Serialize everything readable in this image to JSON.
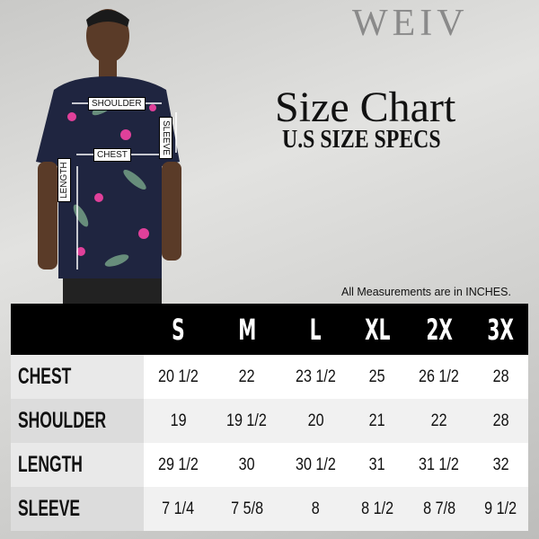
{
  "brand": "WEIV",
  "title": "Size Chart",
  "subtitle": "U.S SIZE SPECS",
  "note": "All Measurements are in INCHES.",
  "model_labels": {
    "shoulder": "SHOULDER",
    "sleeve": "SLEEVE",
    "chest": "CHEST",
    "length": "LENGTH"
  },
  "table": {
    "sizes": [
      "S",
      "M",
      "L",
      "XL",
      "2X",
      "3X"
    ],
    "rows": [
      {
        "label": "CHEST",
        "values": [
          "20 1/2",
          "22",
          "23 1/2",
          "25",
          "26 1/2",
          "28"
        ]
      },
      {
        "label": "SHOULDER",
        "values": [
          "19",
          "19 1/2",
          "20",
          "21",
          "22",
          "28"
        ]
      },
      {
        "label": "LENGTH",
        "values": [
          "29 1/2",
          "30",
          "30 1/2",
          "31",
          "31 1/2",
          "32"
        ]
      },
      {
        "label": "SLEEVE",
        "values": [
          "7 1/4",
          "7 5/8",
          "8",
          "8 1/2",
          "8 7/8",
          "9 1/2"
        ]
      }
    ]
  },
  "colors": {
    "header_bg": "#000000",
    "shirt": "#1f2540",
    "flower": "#e0409a",
    "leaf": "#7aa88a"
  }
}
